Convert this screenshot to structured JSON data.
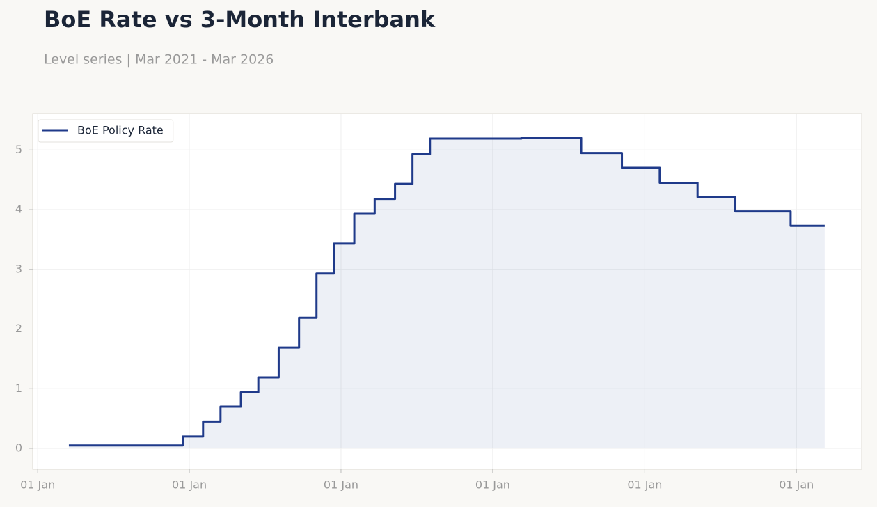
{
  "chart_data": {
    "type": "line",
    "step": "post",
    "title": "BoE Rate vs 3-Month Interbank",
    "subtitle": "Level series | Mar 2021 - Mar 2026",
    "x": [
      "2021-03-17",
      "2021-12-15",
      "2021-12-16",
      "2022-02-02",
      "2022-02-03",
      "2022-03-16",
      "2022-03-17",
      "2022-05-04",
      "2022-05-05",
      "2022-06-15",
      "2022-06-16",
      "2022-08-03",
      "2022-08-04",
      "2022-09-21",
      "2022-09-22",
      "2022-11-02",
      "2022-11-03",
      "2022-12-14",
      "2022-12-15",
      "2023-02-01",
      "2023-02-02",
      "2023-03-22",
      "2023-03-23",
      "2023-05-10",
      "2023-05-11",
      "2023-06-21",
      "2023-06-22",
      "2023-08-02",
      "2023-08-03",
      "2024-03-01",
      "2024-03-10",
      "2024-07-31",
      "2024-08-01",
      "2024-11-06",
      "2024-11-07",
      "2025-02-05",
      "2025-02-06",
      "2025-05-07",
      "2025-05-08",
      "2025-08-06",
      "2025-08-07",
      "2025-12-17",
      "2025-12-18",
      "2026-03-10"
    ],
    "series": [
      {
        "name": "BoE Policy Rate",
        "color": "#1f3a8a",
        "fill": true,
        "values": [
          0.05,
          0.05,
          0.2,
          0.2,
          0.45,
          0.45,
          0.7,
          0.7,
          0.94,
          0.94,
          1.19,
          1.19,
          1.69,
          1.69,
          2.19,
          2.19,
          2.93,
          2.93,
          3.43,
          3.43,
          3.93,
          3.93,
          4.18,
          4.18,
          4.43,
          4.43,
          4.93,
          4.93,
          5.19,
          5.19,
          5.2,
          5.2,
          4.95,
          4.95,
          4.7,
          4.7,
          4.45,
          4.45,
          4.21,
          4.21,
          3.97,
          3.97,
          3.73,
          3.73
        ]
      }
    ],
    "xlim": [
      "2020-12-20",
      "2026-06-07"
    ],
    "xticks": [
      {
        "value": "2021-01-01",
        "label": "01 Jan"
      },
      {
        "value": "2022-01-01",
        "label": "01 Jan"
      },
      {
        "value": "2023-01-01",
        "label": "01 Jan"
      },
      {
        "value": "2024-01-01",
        "label": "01 Jan"
      },
      {
        "value": "2025-01-01",
        "label": "01 Jan"
      },
      {
        "value": "2026-01-01",
        "label": "01 Jan"
      }
    ],
    "ylim": [
      -0.35,
      5.61
    ],
    "yticks": [
      0,
      1,
      2,
      3,
      4,
      5
    ],
    "grid": true,
    "legend": "upper-left"
  }
}
